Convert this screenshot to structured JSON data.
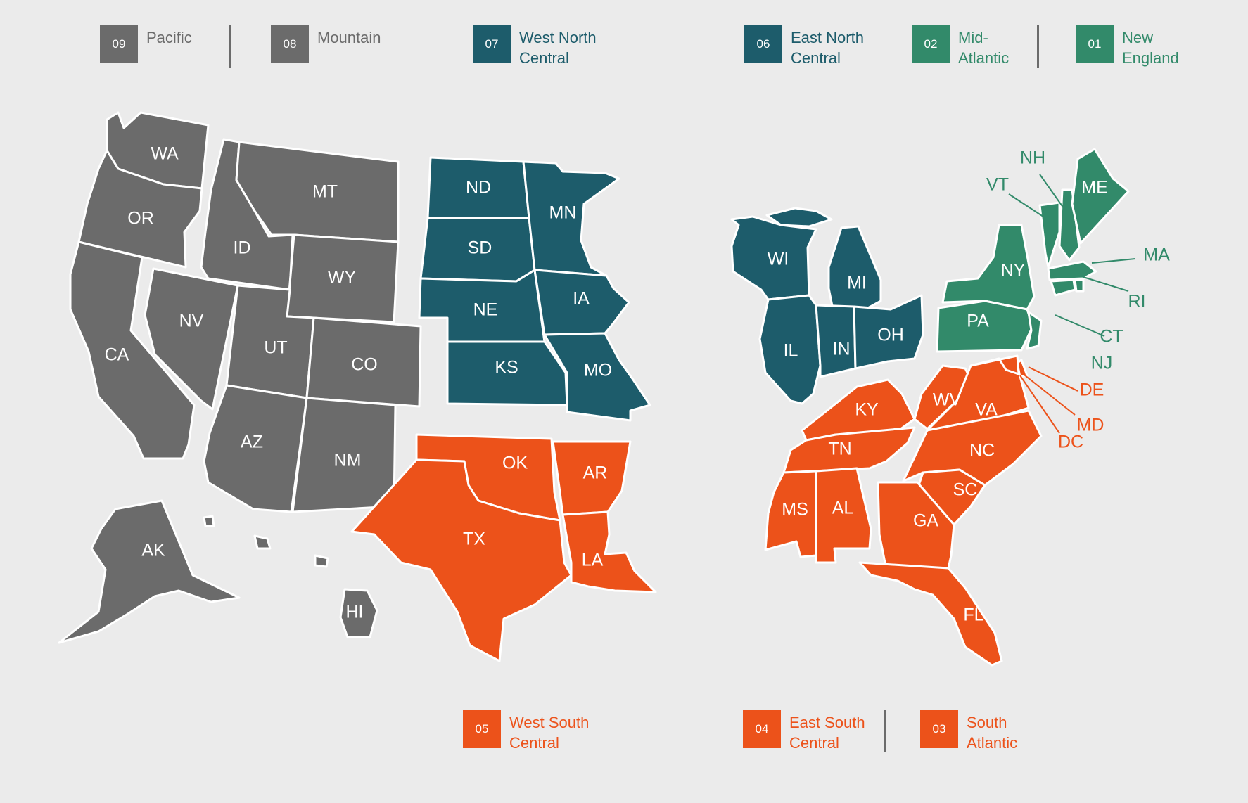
{
  "colors": {
    "background": "#ebebeb",
    "gray": "#6b6b6b",
    "teal_dark": "#1d5c6b",
    "green": "#328a6a",
    "orange": "#ec521a",
    "border": "#ffffff"
  },
  "legend": [
    {
      "code": "09",
      "name": "Pacific",
      "color": "gray"
    },
    {
      "code": "08",
      "name": "Mountain",
      "color": "gray"
    },
    {
      "code": "07",
      "name": "West North Central",
      "color": "teal_dark"
    },
    {
      "code": "06",
      "name": "East North Central",
      "color": "teal_dark"
    },
    {
      "code": "02",
      "name": "Mid-Atlantic",
      "color": "green"
    },
    {
      "code": "01",
      "name": "New England",
      "color": "green"
    },
    {
      "code": "05",
      "name": "West South Central",
      "color": "orange"
    },
    {
      "code": "04",
      "name": "East South Central",
      "color": "orange"
    },
    {
      "code": "03",
      "name": "South Atlantic",
      "color": "orange"
    }
  ],
  "legend_display": {
    "09": "Pacific",
    "08": "Mountain",
    "07": "West North\nCentral",
    "06": "East North\nCentral",
    "02": "Mid-\nAtlantic",
    "01": "New\nEngland",
    "05": "West South\nCentral",
    "04": "East South\nCentral",
    "03": "South\nAtlantic"
  },
  "states": {
    "WA": "gray",
    "OR": "gray",
    "CA": "gray",
    "AK": "gray",
    "HI": "gray",
    "MT": "gray",
    "ID": "gray",
    "WY": "gray",
    "NV": "gray",
    "UT": "gray",
    "CO": "gray",
    "AZ": "gray",
    "NM": "gray",
    "ND": "teal_dark",
    "SD": "teal_dark",
    "NE": "teal_dark",
    "KS": "teal_dark",
    "MN": "teal_dark",
    "IA": "teal_dark",
    "MO": "teal_dark",
    "WI": "teal_dark",
    "MI": "teal_dark",
    "IL": "teal_dark",
    "IN": "teal_dark",
    "OH": "teal_dark",
    "OK": "orange",
    "TX": "orange",
    "AR": "orange",
    "LA": "orange",
    "KY": "orange",
    "TN": "orange",
    "MS": "orange",
    "AL": "orange",
    "WV": "orange",
    "VA": "orange",
    "NC": "orange",
    "SC": "orange",
    "GA": "orange",
    "FL": "orange",
    "DE": "orange",
    "MD": "orange",
    "DC": "orange",
    "NY": "green",
    "PA": "green",
    "NJ": "green",
    "ME": "green",
    "NH": "green",
    "VT": "green",
    "MA": "green",
    "RI": "green",
    "CT": "green"
  }
}
